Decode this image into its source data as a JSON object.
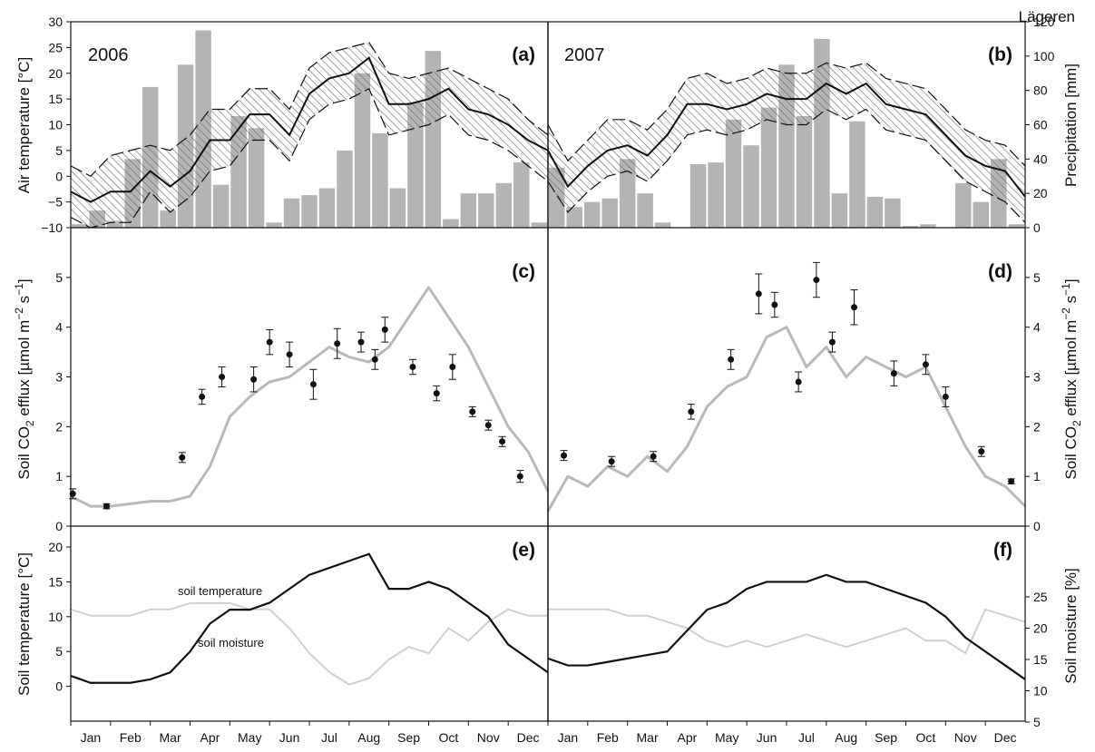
{
  "figure": {
    "site": "Lägeren",
    "years": [
      "2006",
      "2007"
    ],
    "months": [
      "Jan",
      "Feb",
      "Mar",
      "Apr",
      "May",
      "Jun",
      "Jul",
      "Aug",
      "Sep",
      "Oct",
      "Nov",
      "Dec"
    ],
    "colors": {
      "precip_bar": "#b4b4b4",
      "efflux_line": "#b8b8b8",
      "moisture_line": "#d0d0d0",
      "black": "#111111"
    }
  },
  "chart_data": [
    {
      "panel": "(a)",
      "year": "2006",
      "type": "bar+line",
      "ylabel": "Air temperature [°C]",
      "ylim": [
        -10,
        30
      ],
      "y_ticks": [
        "−10",
        "−5",
        "0",
        "5",
        "10",
        "15",
        "20",
        "25",
        "30"
      ],
      "y2label": "Precipitation [mm]",
      "y2lim": [
        0,
        120
      ],
      "y2_ticks": [
        "0",
        "20",
        "40",
        "60",
        "80",
        "100",
        "120"
      ],
      "precip_mm": [
        2,
        10,
        4,
        40,
        82,
        10,
        95,
        115,
        25,
        65,
        58,
        3,
        17,
        19,
        23,
        45,
        90,
        55,
        23,
        73,
        103,
        5,
        20,
        20,
        26,
        38,
        3
      ],
      "air_temp": {
        "x_month": [
          0,
          0.5,
          1,
          1.5,
          2,
          2.5,
          3,
          3.5,
          4,
          4.5,
          5,
          5.5,
          6,
          6.5,
          7,
          7.5,
          8,
          8.5,
          9,
          9.5,
          10,
          10.5,
          11,
          11.5,
          12
        ],
        "mean": [
          -3,
          -5,
          -3,
          -3,
          1,
          -2,
          1,
          7,
          7,
          12,
          12,
          8,
          16,
          19,
          20,
          23,
          14,
          14,
          15,
          17,
          13,
          12,
          10,
          7,
          5
        ],
        "upper": [
          2,
          0,
          4,
          5,
          6,
          5,
          8,
          13,
          13,
          17,
          17,
          13,
          21,
          24,
          25,
          26,
          20,
          19,
          20,
          21,
          19,
          17,
          15,
          11,
          8
        ],
        "lower": [
          -8,
          -10,
          -9,
          -9,
          -3,
          -7,
          -4,
          1,
          2,
          7,
          7,
          3,
          11,
          14,
          15,
          17,
          8,
          9,
          10,
          12,
          8,
          7,
          5,
          2,
          -1
        ]
      }
    },
    {
      "panel": "(b)",
      "year": "2007",
      "type": "bar+line",
      "ylabel": "Air temperature [°C]",
      "ylim": [
        -10,
        30
      ],
      "y2label": "Precipitation [mm]",
      "y2lim": [
        0,
        120
      ],
      "precip_mm": [
        35,
        12,
        15,
        17,
        40,
        20,
        3,
        0,
        37,
        38,
        63,
        48,
        70,
        95,
        65,
        110,
        20,
        62,
        18,
        17,
        1,
        2,
        0,
        26,
        15,
        40,
        2
      ],
      "air_temp": {
        "x_month": [
          0,
          0.5,
          1,
          1.5,
          2,
          2.5,
          3,
          3.5,
          4,
          4.5,
          5,
          5.5,
          6,
          6.5,
          7,
          7.5,
          8,
          8.5,
          9,
          9.5,
          10,
          10.5,
          11,
          11.5,
          12
        ],
        "mean": [
          5,
          -2,
          2,
          5,
          6,
          4,
          8,
          14,
          14,
          13,
          14,
          16,
          15,
          15,
          18,
          16,
          18,
          14,
          13,
          12,
          8,
          4,
          2,
          1,
          -4
        ],
        "upper": [
          10,
          3,
          7,
          11,
          11,
          9,
          13,
          19,
          20,
          18,
          19,
          21,
          20,
          20,
          22,
          21,
          22,
          19,
          18,
          17,
          13,
          9,
          7,
          6,
          2
        ],
        "lower": [
          -1,
          -7,
          -3,
          0,
          1,
          -1,
          3,
          8,
          9,
          8,
          9,
          11,
          10,
          10,
          13,
          11,
          13,
          9,
          8,
          7,
          3,
          -1,
          -3,
          -5,
          -9
        ]
      }
    },
    {
      "panel": "(c)",
      "year": "2006",
      "type": "line+scatter",
      "ylabel": "Soil CO2 efflux [µmol m−2 s−1]",
      "ylim": [
        0,
        6
      ],
      "y_ticks": [
        "0",
        "1",
        "2",
        "3",
        "4",
        "5"
      ],
      "model_line": {
        "x_month": [
          0,
          0.5,
          1,
          1.5,
          2,
          2.5,
          3,
          3.5,
          4,
          4.5,
          5,
          5.5,
          6,
          6.5,
          7,
          7.5,
          8,
          8.5,
          9,
          9.5,
          10,
          10.5,
          11,
          11.5,
          12
        ],
        "y": [
          0.6,
          0.4,
          0.4,
          0.45,
          0.5,
          0.5,
          0.6,
          1.2,
          2.2,
          2.6,
          2.9,
          3.0,
          3.3,
          3.6,
          3.4,
          3.3,
          3.6,
          4.2,
          4.8,
          4.2,
          3.6,
          2.8,
          2.0,
          1.5,
          0.7
        ]
      },
      "measurements": {
        "x_month": [
          0.05,
          0.9,
          2.8,
          3.3,
          3.8,
          4.6,
          5.0,
          5.5,
          6.1,
          6.7,
          7.3,
          7.65,
          7.9,
          8.6,
          9.2,
          9.6,
          10.1,
          10.5,
          10.85,
          11.3
        ],
        "y": [
          0.65,
          0.4,
          1.38,
          2.6,
          3.0,
          2.95,
          3.7,
          3.45,
          2.85,
          3.67,
          3.7,
          3.35,
          3.95,
          3.2,
          2.67,
          3.2,
          2.3,
          2.03,
          1.7,
          1.0
        ],
        "err": [
          0.1,
          0.05,
          0.1,
          0.15,
          0.2,
          0.25,
          0.25,
          0.25,
          0.3,
          0.3,
          0.2,
          0.2,
          0.25,
          0.15,
          0.15,
          0.25,
          0.1,
          0.1,
          0.1,
          0.12
        ]
      }
    },
    {
      "panel": "(d)",
      "year": "2007",
      "type": "line+scatter",
      "ylabel": "Soil CO2 efflux [µmol m−2 s−1]",
      "ylim": [
        0,
        6
      ],
      "model_line": {
        "x_month": [
          0,
          0.5,
          1,
          1.5,
          2,
          2.5,
          3,
          3.5,
          4,
          4.5,
          5,
          5.5,
          6,
          6.5,
          7,
          7.5,
          8,
          8.5,
          9,
          9.5,
          10,
          10.5,
          11,
          11.5,
          12
        ],
        "y": [
          0.3,
          1.0,
          0.8,
          1.2,
          1.0,
          1.4,
          1.1,
          1.6,
          2.4,
          2.8,
          3.0,
          3.8,
          4.0,
          3.2,
          3.6,
          3.0,
          3.4,
          3.2,
          3.0,
          3.2,
          2.4,
          1.6,
          1.0,
          0.8,
          0.4
        ]
      },
      "measurements": {
        "x_month": [
          0.4,
          1.6,
          2.65,
          3.6,
          4.6,
          5.3,
          5.7,
          6.3,
          6.75,
          7.15,
          7.7,
          8.7,
          9.5,
          10.0,
          10.9,
          11.65
        ],
        "y": [
          1.42,
          1.3,
          1.4,
          2.3,
          3.35,
          4.67,
          4.45,
          2.9,
          4.95,
          3.7,
          4.4,
          3.07,
          3.25,
          2.6,
          1.5,
          0.9
        ],
        "err": [
          0.1,
          0.1,
          0.1,
          0.15,
          0.2,
          0.4,
          0.25,
          0.2,
          0.35,
          0.2,
          0.35,
          0.25,
          0.2,
          0.2,
          0.1,
          0.05
        ]
      }
    },
    {
      "panel": "(e)",
      "year": "2006",
      "type": "line",
      "ylabel": "Soil temperature [°C]",
      "ylim": [
        -5,
        23
      ],
      "y_ticks": [
        "0",
        "5",
        "10",
        "15",
        "20"
      ],
      "annotations": [
        "soil temperature",
        "soil moisture"
      ],
      "soil_temperature": {
        "x_month": [
          0,
          0.5,
          1,
          1.5,
          2,
          2.5,
          3,
          3.5,
          4,
          4.5,
          5,
          5.5,
          6,
          6.5,
          7,
          7.5,
          8,
          8.5,
          9,
          9.5,
          10,
          10.5,
          11,
          11.5,
          12
        ],
        "y": [
          1.5,
          0.5,
          0.5,
          0.5,
          1,
          2,
          5,
          9,
          11,
          11,
          12,
          14,
          16,
          17,
          18,
          19,
          14,
          14,
          15,
          14,
          12,
          10,
          6,
          4,
          2
        ]
      },
      "soil_moisture_pct": {
        "x_month": [
          0,
          0.5,
          1,
          1.5,
          2,
          2.5,
          3,
          3.5,
          4,
          4.5,
          5,
          5.5,
          6,
          6.5,
          7,
          7.5,
          8,
          8.5,
          9,
          9.5,
          10,
          10.5,
          11,
          11.5,
          12
        ],
        "y": [
          23,
          22,
          22,
          22,
          23,
          23,
          24,
          24,
          24,
          23,
          23,
          20,
          16,
          13,
          11,
          12,
          15,
          17,
          16,
          20,
          18,
          21,
          23,
          22,
          22
        ]
      }
    },
    {
      "panel": "(f)",
      "year": "2007",
      "type": "line",
      "y2label": "Soil moisture [%]",
      "y2lim": [
        5,
        25
      ],
      "y2_ticks": [
        "5",
        "10",
        "15",
        "20",
        "25"
      ],
      "soil_temperature": {
        "x_month": [
          0,
          0.5,
          1,
          1.5,
          2,
          2.5,
          3,
          3.5,
          4,
          4.5,
          5,
          5.5,
          6,
          6.5,
          7,
          7.5,
          8,
          8.5,
          9,
          9.5,
          10,
          10.5,
          11,
          11.5,
          12
        ],
        "y": [
          4,
          3,
          3,
          3.5,
          4,
          4.5,
          5,
          8,
          11,
          12,
          14,
          15,
          15,
          15,
          16,
          15,
          15,
          14,
          13,
          12,
          10,
          7,
          5,
          3,
          1
        ]
      },
      "soil_moisture_pct": {
        "x_month": [
          0,
          0.5,
          1,
          1.5,
          2,
          2.5,
          3,
          3.5,
          4,
          4.5,
          5,
          5.5,
          6,
          6.5,
          7,
          7.5,
          8,
          8.5,
          9,
          9.5,
          10,
          10.5,
          11,
          11.5,
          12
        ],
        "y": [
          23,
          23,
          23,
          23,
          22,
          22,
          21,
          20,
          18,
          17,
          18,
          17,
          18,
          19,
          18,
          17,
          18,
          19,
          20,
          18,
          18,
          16,
          23,
          22,
          21
        ]
      }
    }
  ]
}
